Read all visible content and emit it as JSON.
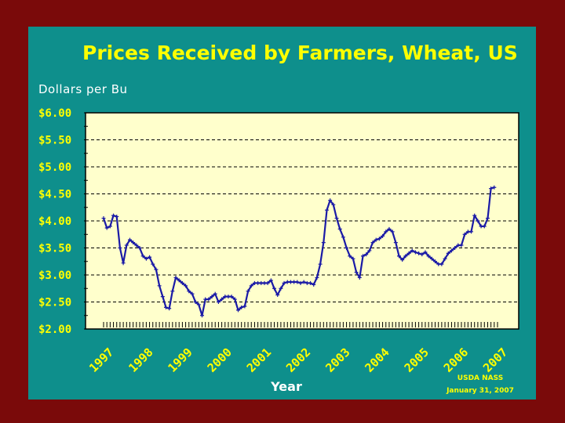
{
  "colors": {
    "outer_background": "#7a0a0a",
    "slide_background": "#0e8f8c",
    "plot_background": "#ffffcc",
    "line": "#1a1aa6",
    "title": "#ffff00",
    "tick_labels": "#ffff00",
    "text": "#ffffff"
  },
  "chart_data": {
    "type": "line",
    "title": "Prices Received by Farmers, Wheat, US",
    "ylabel": "Dollars per Bu",
    "xlabel": "Year",
    "source_lines": [
      "USDA NASS",
      "January 31, 2007"
    ],
    "ylim": [
      2.0,
      6.0
    ],
    "yticks": [
      2.0,
      2.5,
      3.0,
      3.5,
      4.0,
      4.5,
      5.0,
      5.5,
      6.0
    ],
    "ytick_labels": [
      "$2.00",
      "$2.50",
      "$3.00",
      "$3.50",
      "$4.00",
      "$4.50",
      "$5.00",
      "$5.50",
      "$6.00"
    ],
    "xlim": [
      "1997-01",
      "2007-01"
    ],
    "xtick_labels": [
      "1997",
      "1998",
      "1999",
      "2000",
      "2001",
      "2002",
      "2003",
      "2004",
      "2005",
      "2006",
      "2007"
    ],
    "grid": "horizontal dashed",
    "legend": "none",
    "series": [
      {
        "x": [
          "1997-01",
          "1997-02",
          "1997-03",
          "1997-04",
          "1997-05",
          "1997-06",
          "1997-07",
          "1997-08",
          "1997-09",
          "1997-10",
          "1997-11",
          "1997-12",
          "1998-01",
          "1998-02",
          "1998-03",
          "1998-04",
          "1998-05",
          "1998-06",
          "1998-07",
          "1998-08",
          "1998-09",
          "1998-10",
          "1998-11",
          "1998-12",
          "1999-01",
          "1999-02",
          "1999-03",
          "1999-04",
          "1999-05",
          "1999-06",
          "1999-07",
          "1999-08",
          "1999-09",
          "1999-10",
          "1999-11",
          "1999-12",
          "2000-01",
          "2000-02",
          "2000-03",
          "2000-04",
          "2000-05",
          "2000-06",
          "2000-07",
          "2000-08",
          "2000-09",
          "2000-10",
          "2000-11",
          "2000-12",
          "2001-01",
          "2001-02",
          "2001-03",
          "2001-04",
          "2001-05",
          "2001-06",
          "2001-07",
          "2001-08",
          "2001-09",
          "2001-10",
          "2001-11",
          "2001-12",
          "2002-01",
          "2002-02",
          "2002-03",
          "2002-04",
          "2002-05",
          "2002-06",
          "2002-07",
          "2002-08",
          "2002-09",
          "2002-10",
          "2002-11",
          "2002-12",
          "2003-01",
          "2003-02",
          "2003-03",
          "2003-04",
          "2003-05",
          "2003-06",
          "2003-07",
          "2003-08",
          "2003-09",
          "2003-10",
          "2003-11",
          "2003-12",
          "2004-01",
          "2004-02",
          "2004-03",
          "2004-04",
          "2004-05",
          "2004-06",
          "2004-07",
          "2004-08",
          "2004-09",
          "2004-10",
          "2004-11",
          "2004-12",
          "2005-01",
          "2005-02",
          "2005-03",
          "2005-04",
          "2005-05",
          "2005-06",
          "2005-07",
          "2005-08",
          "2005-09",
          "2005-10",
          "2005-11",
          "2005-12",
          "2006-01",
          "2006-02",
          "2006-03",
          "2006-04",
          "2006-05",
          "2006-06",
          "2006-07",
          "2006-08",
          "2006-09",
          "2006-10",
          "2006-11",
          "2006-12"
        ],
        "values": [
          4.05,
          3.87,
          3.9,
          4.1,
          4.08,
          3.5,
          3.22,
          3.55,
          3.65,
          3.6,
          3.55,
          3.5,
          3.35,
          3.3,
          3.33,
          3.2,
          3.1,
          2.8,
          2.6,
          2.4,
          2.38,
          2.7,
          2.95,
          2.9,
          2.85,
          2.8,
          2.7,
          2.65,
          2.5,
          2.45,
          2.25,
          2.55,
          2.55,
          2.6,
          2.65,
          2.5,
          2.55,
          2.6,
          2.6,
          2.6,
          2.55,
          2.35,
          2.4,
          2.42,
          2.7,
          2.8,
          2.85,
          2.85,
          2.85,
          2.85,
          2.85,
          2.9,
          2.75,
          2.63,
          2.75,
          2.85,
          2.87,
          2.87,
          2.87,
          2.87,
          2.85,
          2.87,
          2.85,
          2.85,
          2.82,
          2.95,
          3.2,
          3.6,
          4.2,
          4.38,
          4.3,
          4.05,
          3.85,
          3.7,
          3.5,
          3.35,
          3.3,
          3.05,
          2.95,
          3.35,
          3.38,
          3.45,
          3.6,
          3.65,
          3.67,
          3.72,
          3.8,
          3.85,
          3.8,
          3.6,
          3.35,
          3.28,
          3.35,
          3.4,
          3.45,
          3.42,
          3.4,
          3.38,
          3.42,
          3.35,
          3.3,
          3.25,
          3.2,
          3.2,
          3.3,
          3.4,
          3.45,
          3.5,
          3.55,
          3.55,
          3.75,
          3.8,
          3.8,
          4.1,
          4.0,
          3.9,
          3.9,
          4.05,
          4.6,
          4.62
        ]
      }
    ]
  }
}
